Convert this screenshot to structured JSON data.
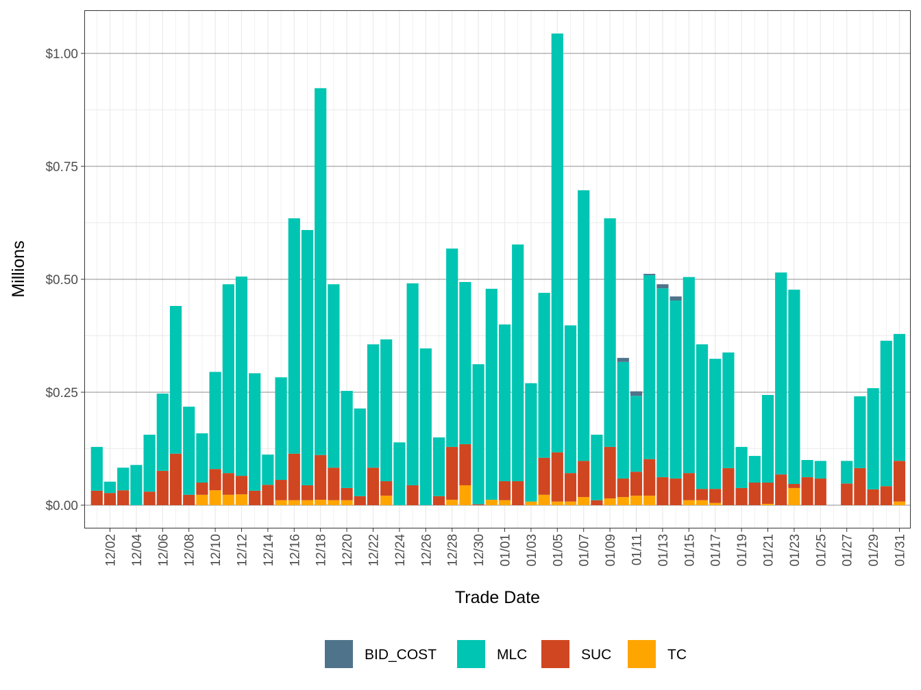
{
  "chart_data": {
    "type": "bar",
    "stacked": true,
    "title": "",
    "xlabel": "Trade Date",
    "ylabel": "Millions",
    "ylim": [
      0,
      1.08
    ],
    "y_ticks": [
      0,
      0.25,
      0.5,
      0.75,
      1.0
    ],
    "y_tick_labels": [
      "$0.00",
      "$0.25",
      "$0.50",
      "$0.75",
      "$1.00"
    ],
    "grid": true,
    "legend_position": "bottom",
    "categories": [
      "12/01",
      "12/02",
      "12/03",
      "12/04",
      "12/05",
      "12/06",
      "12/07",
      "12/08",
      "12/09",
      "12/10",
      "12/11",
      "12/12",
      "12/13",
      "12/14",
      "12/15",
      "12/16",
      "12/17",
      "12/18",
      "12/19",
      "12/20",
      "12/21",
      "12/22",
      "12/23",
      "12/24",
      "12/25",
      "12/26",
      "12/27",
      "12/28",
      "12/29",
      "12/30",
      "12/31",
      "01/01",
      "01/02",
      "01/03",
      "01/04",
      "01/05",
      "01/06",
      "01/07",
      "01/08",
      "01/09",
      "01/10",
      "01/11",
      "01/12",
      "01/13",
      "01/14",
      "01/15",
      "01/16",
      "01/17",
      "01/18",
      "01/19",
      "01/20",
      "01/21",
      "01/22",
      "01/23",
      "01/24",
      "01/25",
      "01/26",
      "01/27",
      "01/28",
      "01/29",
      "01/30",
      "01/31"
    ],
    "x_tick_labels": [
      "12/02",
      "12/04",
      "12/06",
      "12/08",
      "12/10",
      "12/12",
      "12/14",
      "12/16",
      "12/18",
      "12/20",
      "12/22",
      "12/24",
      "12/26",
      "12/28",
      "12/30",
      "01/01",
      "01/03",
      "01/05",
      "01/07",
      "01/09",
      "01/11",
      "01/13",
      "01/15",
      "01/17",
      "01/19",
      "01/21",
      "01/23",
      "01/25",
      "01/27",
      "01/29",
      "01/31"
    ],
    "series": [
      {
        "name": "TC",
        "color": "#FFA500",
        "values": [
          0,
          0,
          0,
          0,
          0,
          0,
          0,
          0,
          0.023,
          0.033,
          0.023,
          0.024,
          0,
          0,
          0.011,
          0.011,
          0.011,
          0.012,
          0.011,
          0.011,
          0,
          0,
          0.021,
          0,
          0,
          0,
          0,
          0.012,
          0.044,
          0,
          0.012,
          0.011,
          0,
          0.008,
          0.023,
          0.008,
          0.008,
          0.018,
          0,
          0.015,
          0.018,
          0.021,
          0.021,
          0,
          0,
          0.011,
          0.011,
          0.005,
          0,
          0,
          0,
          0.003,
          0,
          0.038,
          0,
          0,
          0,
          0,
          0,
          0,
          0,
          0.008
        ]
      },
      {
        "name": "SUC",
        "color": "#D04620",
        "values": [
          0.032,
          0.027,
          0.033,
          0,
          0.03,
          0.076,
          0.114,
          0.023,
          0.027,
          0.047,
          0.048,
          0.041,
          0.032,
          0.045,
          0.045,
          0.103,
          0.033,
          0.099,
          0.072,
          0.027,
          0.02,
          0.083,
          0.032,
          0,
          0.044,
          0,
          0.02,
          0.117,
          0.091,
          0.002,
          0,
          0.042,
          0.053,
          0,
          0.082,
          0.109,
          0.063,
          0.08,
          0.011,
          0.114,
          0.041,
          0.053,
          0.081,
          0.062,
          0.059,
          0.06,
          0.025,
          0.031,
          0.082,
          0.038,
          0.05,
          0.047,
          0.068,
          0.009,
          0.062,
          0.059,
          0,
          0.048,
          0.082,
          0.035,
          0.042,
          0.09
        ]
      },
      {
        "name": "MLC",
        "color": "#00C5B2",
        "values": [
          0.097,
          0.025,
          0.05,
          0.089,
          0.126,
          0.171,
          0.327,
          0.195,
          0.109,
          0.215,
          0.418,
          0.441,
          0.26,
          0.067,
          0.227,
          0.521,
          0.565,
          0.812,
          0.406,
          0.215,
          0.194,
          0.273,
          0.314,
          0.139,
          0.447,
          0.347,
          0.13,
          0.439,
          0.359,
          0.31,
          0.467,
          0.347,
          0.524,
          0.262,
          0.365,
          0.927,
          0.327,
          0.599,
          0.145,
          0.506,
          0.258,
          0.168,
          0.407,
          0.418,
          0.394,
          0.434,
          0.32,
          0.288,
          0.256,
          0.091,
          0.059,
          0.194,
          0.447,
          0.43,
          0.038,
          0.039,
          0,
          0.05,
          0.159,
          0.224,
          0.322,
          0.281
        ]
      },
      {
        "name": "BID_COST",
        "color": "#4F738A",
        "values": [
          0,
          0,
          0,
          0,
          0,
          0,
          0,
          0,
          0,
          0,
          0,
          0,
          0,
          0,
          0,
          0,
          0,
          0,
          0,
          0,
          0,
          0,
          0,
          0,
          0,
          0,
          0,
          0,
          0,
          0,
          0,
          0,
          0,
          0,
          0,
          0,
          0,
          0,
          0,
          0,
          0.009,
          0.01,
          0.003,
          0.009,
          0.009,
          0,
          0,
          0,
          0,
          0,
          0,
          0,
          0,
          0,
          0,
          0,
          0,
          0,
          0,
          0,
          0,
          0
        ]
      }
    ],
    "legend": [
      "BID_COST",
      "MLC",
      "SUC",
      "TC"
    ]
  }
}
